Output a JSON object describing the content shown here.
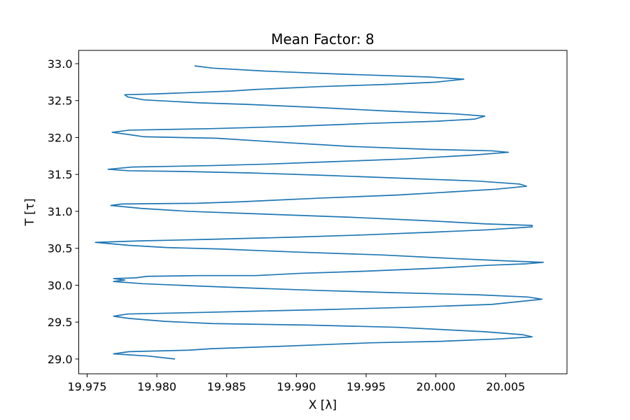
{
  "chart_data": {
    "type": "line",
    "title": "Mean Factor: 8",
    "xlabel": "X [λ]",
    "ylabel": "T [τ]",
    "xlim": [
      19.9744,
      20.0094
    ],
    "ylim": [
      28.8,
      33.18
    ],
    "x_ticks": [
      19.975,
      19.98,
      19.985,
      19.99,
      19.995,
      20.0,
      20.005
    ],
    "x_tick_labels": [
      "19.975",
      "19.980",
      "19.985",
      "19.990",
      "19.995",
      "20.000",
      "20.005"
    ],
    "y_ticks": [
      29.0,
      29.5,
      30.0,
      30.5,
      31.0,
      31.5,
      32.0,
      32.5,
      33.0
    ],
    "y_tick_labels": [
      "29.0",
      "29.5",
      "30.0",
      "30.5",
      "31.0",
      "31.5",
      "32.0",
      "32.5",
      "33.0"
    ],
    "grid": false,
    "color": "#1f77b4",
    "series": [
      {
        "name": "",
        "points": [
          [
            19.9813,
            29.0
          ],
          [
            19.9794,
            29.04
          ],
          [
            19.9769,
            29.07
          ],
          [
            19.978,
            29.1
          ],
          [
            19.9823,
            29.12
          ],
          [
            19.9839,
            29.14
          ],
          [
            19.9885,
            29.17
          ],
          [
            19.9926,
            29.2
          ],
          [
            19.9954,
            29.22
          ],
          [
            20.0004,
            29.24
          ],
          [
            20.0043,
            29.27
          ],
          [
            20.0069,
            29.3
          ],
          [
            20.0062,
            29.33
          ],
          [
            20.0035,
            29.37
          ],
          [
            19.9972,
            29.43
          ],
          [
            19.9908,
            29.46
          ],
          [
            19.984,
            29.48
          ],
          [
            19.9806,
            29.51
          ],
          [
            19.978,
            29.55
          ],
          [
            19.9769,
            29.58
          ],
          [
            19.9779,
            29.61
          ],
          [
            19.983,
            29.63
          ],
          [
            19.9873,
            29.65
          ],
          [
            19.9921,
            29.67
          ],
          [
            19.998,
            29.7
          ],
          [
            20.004,
            29.74
          ],
          [
            20.0076,
            29.81
          ],
          [
            20.0066,
            29.84
          ],
          [
            20.003,
            29.87
          ],
          [
            19.9968,
            29.9
          ],
          [
            19.9914,
            29.93
          ],
          [
            19.9869,
            29.96
          ],
          [
            19.9828,
            29.99
          ],
          [
            19.979,
            30.02
          ],
          [
            19.9769,
            30.05
          ],
          [
            19.9777,
            30.07
          ],
          [
            19.9769,
            30.09
          ],
          [
            19.9785,
            30.1
          ],
          [
            19.9793,
            30.12
          ],
          [
            19.983,
            30.13
          ],
          [
            19.9871,
            30.13
          ],
          [
            19.9902,
            30.16
          ],
          [
            19.995,
            30.19
          ],
          [
            20.0,
            30.23
          ],
          [
            20.0038,
            30.27
          ],
          [
            20.0065,
            30.29
          ],
          [
            20.0077,
            30.31
          ],
          [
            20.005,
            30.33
          ],
          [
            20.0014,
            30.36
          ],
          [
            19.9961,
            30.41
          ],
          [
            19.9898,
            30.45
          ],
          [
            19.9846,
            30.49
          ],
          [
            19.9807,
            30.51
          ],
          [
            19.978,
            30.54
          ],
          [
            19.9756,
            30.58
          ],
          [
            19.9788,
            30.6
          ],
          [
            19.9836,
            30.62
          ],
          [
            19.9897,
            30.65
          ],
          [
            19.9947,
            30.68
          ],
          [
            20.0,
            30.72
          ],
          [
            20.0037,
            30.75
          ],
          [
            20.0069,
            30.79
          ],
          [
            20.0069,
            30.81
          ],
          [
            20.0036,
            30.83
          ],
          [
            19.9997,
            30.87
          ],
          [
            19.9939,
            30.92
          ],
          [
            19.9867,
            30.97
          ],
          [
            19.9823,
            31.0
          ],
          [
            19.9789,
            31.04
          ],
          [
            19.9767,
            31.08
          ],
          [
            19.9775,
            31.1
          ],
          [
            19.9829,
            31.11
          ],
          [
            19.986,
            31.13
          ],
          [
            19.9918,
            31.18
          ],
          [
            19.9971,
            31.22
          ],
          [
            20.0008,
            31.26
          ],
          [
            20.0043,
            31.3
          ],
          [
            20.0065,
            31.34
          ],
          [
            20.006,
            31.37
          ],
          [
            20.003,
            31.41
          ],
          [
            19.9974,
            31.45
          ],
          [
            19.9917,
            31.49
          ],
          [
            19.9868,
            31.52
          ],
          [
            19.982,
            31.54
          ],
          [
            19.978,
            31.55
          ],
          [
            19.9765,
            31.57
          ],
          [
            19.9782,
            31.6
          ],
          [
            19.9839,
            31.62
          ],
          [
            19.9879,
            31.64
          ],
          [
            19.9922,
            31.67
          ],
          [
            19.9978,
            31.71
          ],
          [
            20.0025,
            31.76
          ],
          [
            20.0052,
            31.8
          ],
          [
            20.004,
            31.82
          ],
          [
            19.9995,
            31.84
          ],
          [
            19.9938,
            31.88
          ],
          [
            19.9885,
            31.94
          ],
          [
            19.9843,
            31.99
          ],
          [
            19.9791,
            32.01
          ],
          [
            19.978,
            32.04
          ],
          [
            19.9768,
            32.07
          ],
          [
            19.978,
            32.1
          ],
          [
            19.9838,
            32.12
          ],
          [
            19.9896,
            32.15
          ],
          [
            19.995,
            32.19
          ],
          [
            20.0,
            32.22
          ],
          [
            20.0028,
            32.25
          ],
          [
            20.0035,
            32.29
          ],
          [
            20.0014,
            32.32
          ],
          [
            19.9964,
            32.36
          ],
          [
            19.9912,
            32.41
          ],
          [
            19.9863,
            32.45
          ],
          [
            19.983,
            32.47
          ],
          [
            19.9791,
            32.51
          ],
          [
            19.9779,
            32.55
          ],
          [
            19.9777,
            32.58
          ],
          [
            19.9798,
            32.59
          ],
          [
            19.9854,
            32.63
          ],
          [
            19.987,
            32.65
          ],
          [
            19.9917,
            32.69
          ],
          [
            19.9966,
            32.72
          ],
          [
            20.0,
            32.75
          ],
          [
            20.002,
            32.79
          ],
          [
            19.9995,
            32.82
          ],
          [
            19.993,
            32.86
          ],
          [
            19.9877,
            32.9
          ],
          [
            19.984,
            32.94
          ],
          [
            19.9827,
            32.97
          ]
        ]
      }
    ]
  }
}
